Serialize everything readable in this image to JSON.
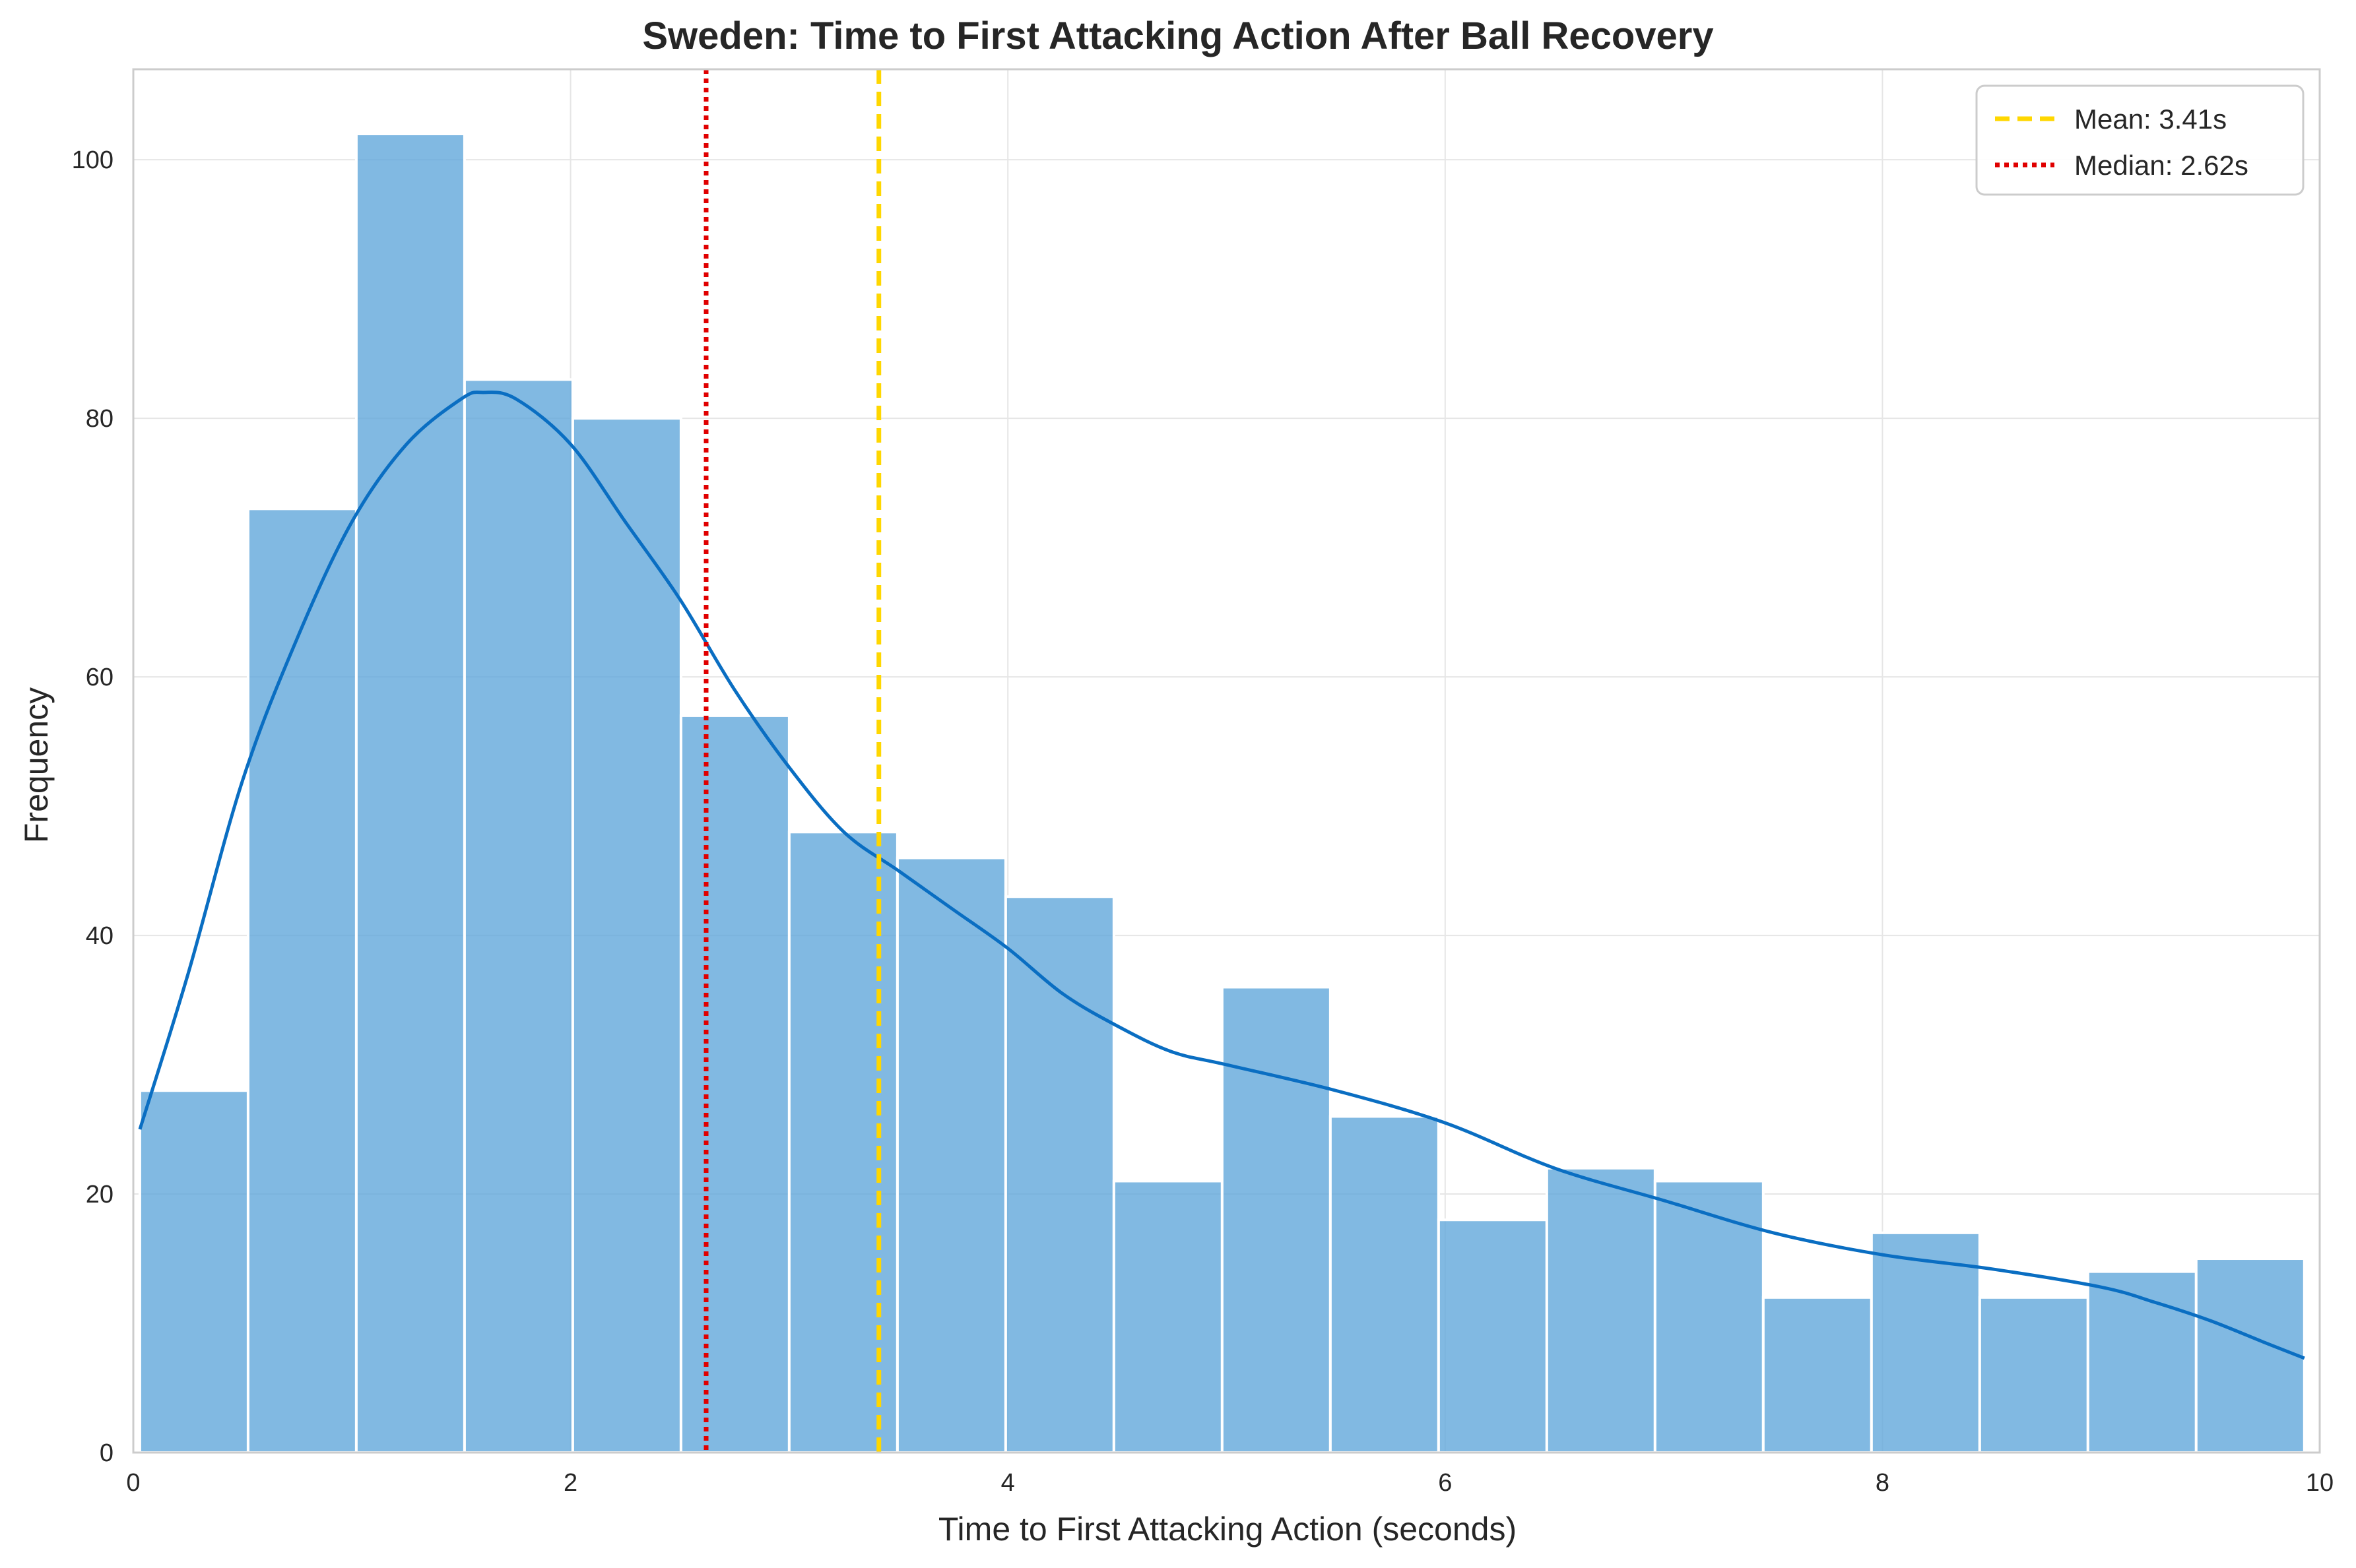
{
  "chart_data": {
    "type": "histogram",
    "title": "Sweden: Time to First Attacking Action After Ball Recovery",
    "xlabel": "Time to First Attacking Action (seconds)",
    "ylabel": "Frequency",
    "xlim": [
      0,
      10
    ],
    "ylim": [
      0,
      107
    ],
    "xticks": [
      0,
      2,
      4,
      6,
      8,
      10
    ],
    "yticks": [
      0,
      20,
      40,
      60,
      80,
      100
    ],
    "grid": true,
    "legend_position": "top-right",
    "bins": [
      {
        "start": 0.03,
        "end": 0.525,
        "count": 28
      },
      {
        "start": 0.525,
        "end": 1.02,
        "count": 73
      },
      {
        "start": 1.02,
        "end": 1.515,
        "count": 102
      },
      {
        "start": 1.515,
        "end": 2.01,
        "count": 83
      },
      {
        "start": 2.01,
        "end": 2.505,
        "count": 80
      },
      {
        "start": 2.505,
        "end": 3.0,
        "count": 57
      },
      {
        "start": 3.0,
        "end": 3.495,
        "count": 48
      },
      {
        "start": 3.495,
        "end": 3.99,
        "count": 46
      },
      {
        "start": 3.99,
        "end": 4.485,
        "count": 43
      },
      {
        "start": 4.485,
        "end": 4.98,
        "count": 21
      },
      {
        "start": 4.98,
        "end": 5.475,
        "count": 36
      },
      {
        "start": 5.475,
        "end": 5.97,
        "count": 26
      },
      {
        "start": 5.97,
        "end": 6.465,
        "count": 18
      },
      {
        "start": 6.465,
        "end": 6.96,
        "count": 22
      },
      {
        "start": 6.96,
        "end": 7.455,
        "count": 21
      },
      {
        "start": 7.455,
        "end": 7.95,
        "count": 12
      },
      {
        "start": 7.95,
        "end": 8.445,
        "count": 17
      },
      {
        "start": 8.445,
        "end": 8.94,
        "count": 12
      },
      {
        "start": 8.94,
        "end": 9.435,
        "count": 14
      },
      {
        "start": 9.435,
        "end": 9.93,
        "count": 15
      }
    ],
    "kde": {
      "x": [
        0.03,
        0.25,
        0.5,
        0.75,
        1.0,
        1.25,
        1.5,
        1.6,
        1.75,
        2.0,
        2.25,
        2.5,
        2.75,
        3.0,
        3.25,
        3.5,
        3.75,
        4.0,
        4.25,
        4.5,
        4.75,
        5.0,
        5.5,
        6.0,
        6.5,
        7.0,
        7.5,
        8.0,
        8.5,
        9.0,
        9.25,
        9.5,
        9.75,
        9.93
      ],
      "y": [
        25,
        37,
        52,
        63,
        72,
        78,
        81.5,
        82,
        81.5,
        78,
        72,
        66,
        59,
        53,
        48,
        45,
        42,
        39,
        35.5,
        33,
        31,
        30,
        28,
        25.5,
        22,
        19.5,
        17,
        15.3,
        14.2,
        12.8,
        11.6,
        10.2,
        8.5,
        7.3
      ]
    },
    "series": [
      {
        "name": "Mean: 3.41s",
        "kind": "vline",
        "value": 3.41,
        "color": "#FFD700",
        "style": "dashed"
      },
      {
        "name": "Median: 2.62s",
        "kind": "vline",
        "value": 2.62,
        "color": "#E00000",
        "style": "dotted"
      }
    ],
    "colors": {
      "bar": "#5DA5DA",
      "bar_edge": "#ffffff",
      "kde": "#0A6EC2",
      "grid": "#E6E6E6",
      "axis": "#CCCCCC",
      "text": "#262626"
    }
  }
}
